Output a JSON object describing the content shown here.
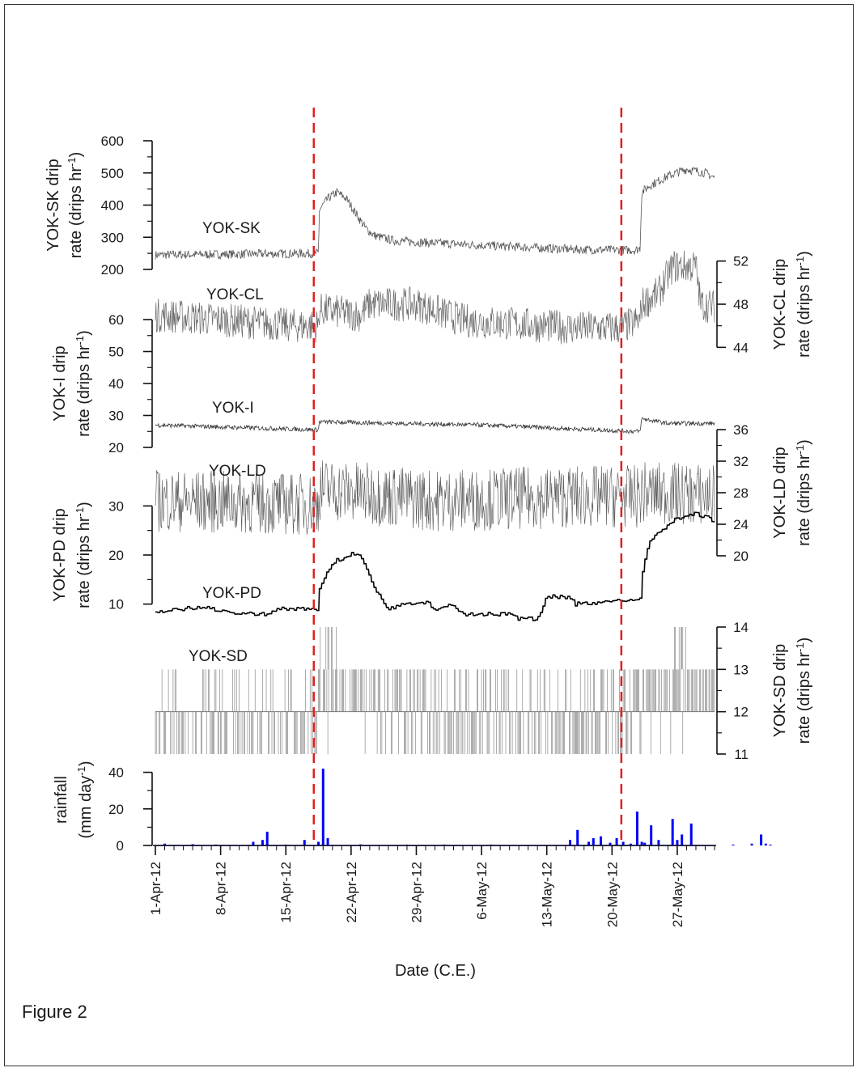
{
  "figure_caption": "Figure 2",
  "chart_data": {
    "type": "line",
    "x_axis": {
      "label": "Date (C.E.)",
      "start_date": "1-Apr-12",
      "end_date": "31-May-12",
      "tick_labels": [
        "1-Apr-12",
        "8-Apr-12",
        "15-Apr-12",
        "22-Apr-12",
        "29-Apr-12",
        "6-May-12",
        "13-May-12",
        "20-May-12",
        "27-May-12"
      ]
    },
    "event_lines": [
      {
        "date": "18-Apr-12",
        "color": "#e02020",
        "style": "dashed"
      },
      {
        "date": "21-May-12",
        "color": "#e02020",
        "style": "dashed"
      }
    ],
    "series": [
      {
        "name": "YOK-SK",
        "axis_side": "left",
        "ylabel": "YOK-SK drip rate (drips hr-1)",
        "ylim": [
          200,
          600
        ],
        "ticks": [
          200,
          300,
          400,
          500,
          600
        ],
        "color": "#555555",
        "stroke": 0.8,
        "noise": 14,
        "points": [
          [
            0,
            245
          ],
          [
            17.5,
            250
          ],
          [
            17.6,
            385
          ],
          [
            18.5,
            420
          ],
          [
            19.5,
            440
          ],
          [
            20.5,
            420
          ],
          [
            21.5,
            375
          ],
          [
            22.5,
            330
          ],
          [
            23.5,
            305
          ],
          [
            25.5,
            290
          ],
          [
            28,
            285
          ],
          [
            35,
            275
          ],
          [
            45,
            262
          ],
          [
            51.5,
            260
          ],
          [
            52,
            265
          ],
          [
            52.2,
            440
          ],
          [
            53,
            460
          ],
          [
            55,
            490
          ],
          [
            57,
            512
          ],
          [
            59,
            500
          ],
          [
            61,
            470
          ],
          [
            63,
            420
          ],
          [
            64.5,
            360
          ],
          [
            66,
            340
          ]
        ]
      },
      {
        "name": "YOK-CL",
        "axis_side": "right",
        "ylabel": "YOK-CL drip rate (drips hr-1)",
        "ylim": [
          42,
          54
        ],
        "ticks": [
          44,
          48,
          52
        ],
        "color": "#666666",
        "stroke": 0.7,
        "noise": 1.6,
        "points": [
          [
            0,
            47
          ],
          [
            8,
            46.5
          ],
          [
            15,
            46
          ],
          [
            17.5,
            46
          ],
          [
            17.6,
            47.5
          ],
          [
            22,
            47
          ],
          [
            23,
            48
          ],
          [
            28,
            48
          ],
          [
            33,
            46.5
          ],
          [
            45,
            45.8
          ],
          [
            50,
            45.8
          ],
          [
            52,
            46.5
          ],
          [
            52.2,
            48
          ],
          [
            54,
            49
          ],
          [
            55.5,
            51.5
          ],
          [
            58,
            51.5
          ],
          [
            58.5,
            48
          ],
          [
            62,
            47.5
          ],
          [
            66,
            47.5
          ]
        ]
      },
      {
        "name": "YOK-I",
        "axis_side": "left",
        "ylabel": "YOK-I drip rate (drips hr-1)",
        "ylim": [
          20,
          60
        ],
        "ticks": [
          20,
          30,
          40,
          50,
          60
        ],
        "color": "#333333",
        "stroke": 0.8,
        "noise": 0.7,
        "points": [
          [
            0,
            27
          ],
          [
            17.5,
            25.5
          ],
          [
            17.6,
            28
          ],
          [
            35,
            27
          ],
          [
            51.5,
            25
          ],
          [
            52,
            25
          ],
          [
            52.2,
            29
          ],
          [
            55,
            27.5
          ],
          [
            66,
            27.5
          ]
        ]
      },
      {
        "name": "YOK-LD",
        "axis_side": "right",
        "ylabel": "YOK-LD drip rate (drips hr-1)",
        "ylim": [
          20,
          36
        ],
        "ticks": [
          20,
          24,
          28,
          32,
          36
        ],
        "color": "#555555",
        "stroke": 0.6,
        "noise": 4,
        "points": [
          [
            0,
            27
          ],
          [
            17.5,
            26.5
          ],
          [
            17.6,
            28.5
          ],
          [
            30,
            27
          ],
          [
            45,
            27.5
          ],
          [
            52,
            27.5
          ],
          [
            52.2,
            28
          ],
          [
            66,
            27.5
          ]
        ]
      },
      {
        "name": "YOK-PD",
        "axis_side": "left",
        "ylabel": "YOK-PD drip rate (drips hr-1)",
        "ylim": [
          5,
          35
        ],
        "ticks": [
          10,
          20,
          30
        ],
        "color": "#000000",
        "stroke": 1.6,
        "noise": 0.4,
        "points": [
          [
            0,
            8.5
          ],
          [
            3,
            9
          ],
          [
            5,
            9.5
          ],
          [
            9,
            8
          ],
          [
            12,
            8
          ],
          [
            13,
            9
          ],
          [
            17.5,
            9
          ],
          [
            17.6,
            13
          ],
          [
            18.5,
            17
          ],
          [
            19.5,
            19
          ],
          [
            21.5,
            20.5
          ],
          [
            22.5,
            18
          ],
          [
            23.5,
            13
          ],
          [
            25,
            9
          ],
          [
            26.5,
            10
          ],
          [
            29,
            10.5
          ],
          [
            30,
            9
          ],
          [
            32,
            10
          ],
          [
            33,
            8
          ],
          [
            38,
            8
          ],
          [
            39,
            7
          ],
          [
            41,
            7
          ],
          [
            42,
            11.5
          ],
          [
            44.5,
            11.5
          ],
          [
            45,
            10
          ],
          [
            52,
            11
          ],
          [
            52.2,
            16
          ],
          [
            53,
            23
          ],
          [
            55.5,
            27
          ],
          [
            58,
            28.5
          ],
          [
            60,
            27
          ],
          [
            62,
            23
          ],
          [
            65,
            18
          ],
          [
            66,
            16
          ]
        ]
      },
      {
        "name": "YOK-SD",
        "axis_side": "right",
        "ylabel": "YOK-SD drip rate (drips hr-1)",
        "ylim": [
          11,
          14
        ],
        "ticks": [
          11,
          12,
          13,
          14
        ],
        "color": "#777777",
        "stroke": 0.6
      },
      {
        "name": "rainfall",
        "type": "bar",
        "axis_side": "left",
        "ylabel": "rainfall (mm day-1)",
        "ylim": [
          0,
          50
        ],
        "ticks": [
          0,
          20,
          40
        ],
        "color": "#0000ff",
        "points": [
          [
            1,
            1
          ],
          [
            4,
            0.7
          ],
          [
            6.5,
            0.5
          ],
          [
            10.5,
            2
          ],
          [
            11.5,
            3
          ],
          [
            12,
            7.5
          ],
          [
            14,
            0.5
          ],
          [
            16,
            3
          ],
          [
            17.5,
            2
          ],
          [
            18,
            42
          ],
          [
            18.5,
            4
          ],
          [
            22,
            0.6
          ],
          [
            27,
            0.5
          ],
          [
            31,
            0.5
          ],
          [
            36,
            0.5
          ],
          [
            44.5,
            3
          ],
          [
            45.3,
            8.5
          ],
          [
            46.5,
            2
          ],
          [
            47,
            4
          ],
          [
            47.8,
            5
          ],
          [
            48.8,
            1.5
          ],
          [
            49.5,
            4
          ],
          [
            50.2,
            2
          ],
          [
            51,
            1
          ],
          [
            51.7,
            18.5
          ],
          [
            52.2,
            2
          ],
          [
            52.5,
            1.5
          ],
          [
            53.2,
            11
          ],
          [
            54,
            3
          ],
          [
            55.5,
            14.5
          ],
          [
            56,
            3
          ],
          [
            56.5,
            6
          ],
          [
            57.5,
            12
          ],
          [
            62,
            0.5
          ],
          [
            64,
            1
          ],
          [
            65,
            6
          ],
          [
            65.5,
            1
          ],
          [
            66,
            0.5
          ]
        ]
      }
    ]
  }
}
